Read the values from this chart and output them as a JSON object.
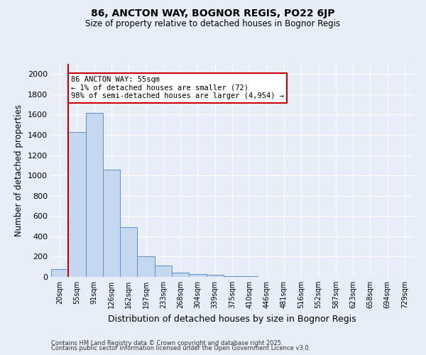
{
  "title1": "86, ANCTON WAY, BOGNOR REGIS, PO22 6JP",
  "title2": "Size of property relative to detached houses in Bognor Regis",
  "xlabel": "Distribution of detached houses by size in Bognor Regis",
  "ylabel": "Number of detached properties",
  "categories": [
    "20sqm",
    "55sqm",
    "91sqm",
    "126sqm",
    "162sqm",
    "197sqm",
    "233sqm",
    "268sqm",
    "304sqm",
    "339sqm",
    "375sqm",
    "410sqm",
    "446sqm",
    "481sqm",
    "516sqm",
    "552sqm",
    "587sqm",
    "623sqm",
    "658sqm",
    "694sqm",
    "729sqm"
  ],
  "values": [
    80,
    1430,
    1620,
    1060,
    490,
    205,
    110,
    40,
    30,
    18,
    10,
    10,
    0,
    0,
    0,
    0,
    0,
    0,
    0,
    0,
    0
  ],
  "bar_color": "#c5d8f0",
  "bar_edge_color": "#5b8fc9",
  "red_line_index": 1,
  "annotation_text": "86 ANCTON WAY: 55sqm\n← 1% of detached houses are smaller (72)\n98% of semi-detached houses are larger (4,954) →",
  "annotation_box_color": "#ffffff",
  "annotation_box_edge_color": "#cc0000",
  "ylim": [
    0,
    2100
  ],
  "yticks": [
    0,
    200,
    400,
    600,
    800,
    1000,
    1200,
    1400,
    1600,
    1800,
    2000
  ],
  "background_color": "#e8eef8",
  "grid_color": "#ffffff",
  "footer1": "Contains HM Land Registry data © Crown copyright and database right 2025.",
  "footer2": "Contains public sector information licensed under the Open Government Licence v3.0."
}
